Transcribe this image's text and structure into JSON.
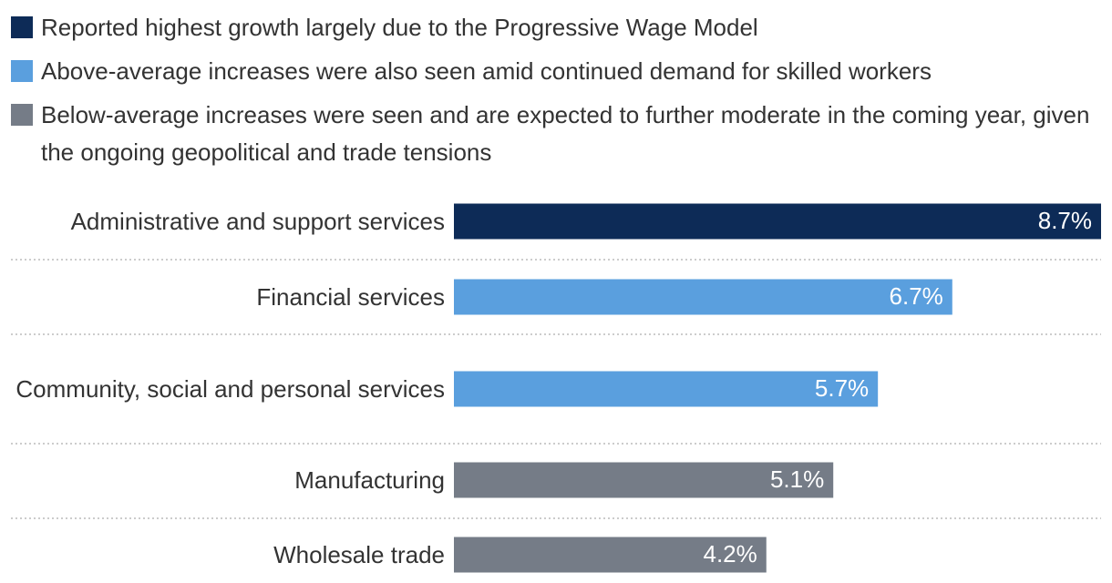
{
  "chart_data": {
    "type": "bar",
    "orientation": "horizontal",
    "legend": [
      {
        "name": "Reported highest growth largely due to the Progressive Wage Model",
        "color": "#0d2b57"
      },
      {
        "name": "Above-average increases were also seen amid continued demand for skilled workers",
        "color": "#5a9fde"
      },
      {
        "name": "Below-average increases were seen and are expected to further moderate in the coming year, given the ongoing geopolitical and trade tensions",
        "color": "#757c87"
      }
    ],
    "categories": [
      "Administrative and support services",
      "Financial services",
      "Community, social and personal services",
      "Manufacturing",
      "Wholesale trade"
    ],
    "values": [
      8.7,
      6.7,
      5.7,
      5.1,
      4.2
    ],
    "value_labels": [
      "8.7%",
      "6.7%",
      "5.7%",
      "5.1%",
      "4.2%"
    ],
    "colors": [
      "#0d2b57",
      "#5a9fde",
      "#5a9fde",
      "#757c87",
      "#757c87"
    ]
  }
}
